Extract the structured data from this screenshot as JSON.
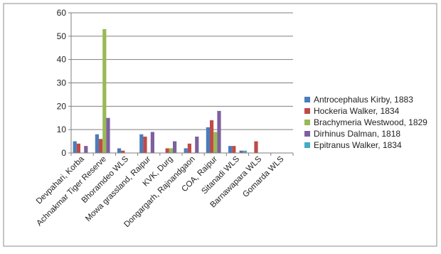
{
  "chart_data": {
    "type": "bar",
    "title": "",
    "xlabel": "",
    "ylabel": "",
    "ylim": [
      0,
      60
    ],
    "yticks": [
      0,
      10,
      20,
      30,
      40,
      50,
      60
    ],
    "grid": true,
    "legend_position": "right",
    "categories": [
      "Devpahari, Korba",
      "Achnakmar Tiger Reserve",
      "Bhoramdeo WLS",
      "Mowa grassland, Raipur",
      "KVK, Durg",
      "Dongargarh, Rajnandgaon",
      "COA, Raipur",
      "Sitanadi WLS",
      "Barnawapara WLS",
      "Gomarda WLS"
    ],
    "series": [
      {
        "name": "Antrocephalus Kirby, 1883",
        "color": "#4a7ebb",
        "values": [
          5,
          8,
          2,
          8,
          0,
          2,
          11,
          3,
          0,
          0
        ]
      },
      {
        "name": "Hockeria Walker, 1834",
        "color": "#be4b48",
        "values": [
          4,
          6,
          1,
          7,
          2,
          4,
          14,
          3,
          5,
          0
        ]
      },
      {
        "name": "Brachymeria Westwood, 1829",
        "color": "#98b954",
        "values": [
          0,
          53,
          0,
          0,
          2,
          0,
          9,
          0,
          0,
          0
        ]
      },
      {
        "name": "Dirhinus Dalman, 1818",
        "color": "#7d60a0",
        "values": [
          3,
          15,
          0,
          9,
          5,
          7,
          18,
          1,
          0,
          0
        ]
      },
      {
        "name": "Epitranus Walker, 1834",
        "color": "#46aac5",
        "values": [
          0,
          0,
          0,
          0,
          0,
          0,
          0,
          1,
          0,
          0
        ]
      }
    ]
  }
}
